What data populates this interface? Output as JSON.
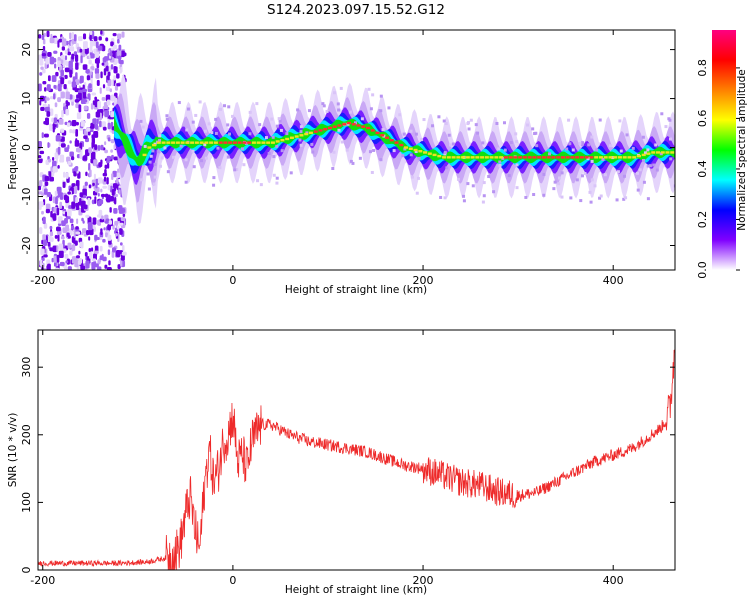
{
  "title": "S124.2023.097.15.52.G12",
  "chart_data": [
    {
      "type": "heatmap",
      "xlabel": "Height of straight line (km)",
      "ylabel": "Frequency (Hz)",
      "xlim": [
        -205,
        465
      ],
      "ylim": [
        -25,
        24
      ],
      "xticks": [
        -200,
        0,
        200,
        400
      ],
      "yticks": [
        -20,
        -10,
        0,
        10,
        20
      ],
      "noise_region_x": [
        -205,
        -120
      ],
      "ridge": {
        "x": [
          -125,
          -110,
          -100,
          -90,
          -80,
          -60,
          -40,
          -20,
          0,
          20,
          40,
          60,
          80,
          100,
          120,
          140,
          160,
          180,
          200,
          220,
          250,
          300,
          350,
          400,
          420,
          440,
          465
        ],
        "y": [
          5,
          0,
          -3,
          0,
          1,
          1,
          1,
          1,
          1,
          1,
          1,
          2,
          3,
          4,
          5,
          4,
          2,
          0,
          -1,
          -2,
          -2,
          -2,
          -2,
          -2,
          -2,
          -1,
          -1
        ]
      },
      "colorbar": {
        "label": "Normalized spectral amplitude",
        "ticks": [
          0.0,
          0.2,
          0.4,
          0.6,
          0.8
        ],
        "range": [
          0,
          0.95
        ],
        "colors": [
          "#ffffff",
          "#8000ff",
          "#0000ff",
          "#00ffff",
          "#00ff00",
          "#ffff00",
          "#ff8000",
          "#ff0000",
          "#ff0080"
        ]
      }
    },
    {
      "type": "line",
      "xlabel": "Height of straight line (km)",
      "ylabel": "SNR (10 * v/v)",
      "xlim": [
        -205,
        465
      ],
      "ylim": [
        0,
        355
      ],
      "xticks": [
        -200,
        0,
        200,
        400
      ],
      "yticks": [
        0,
        100,
        200,
        300
      ],
      "color": "#ee2a2a",
      "series": [
        {
          "x": [
            -205,
            -180,
            -150,
            -120,
            -90,
            -70,
            -60,
            -55,
            -50,
            -45,
            -40,
            -35,
            -30,
            -25,
            -20,
            -15,
            -10,
            -5,
            0,
            5,
            10,
            15,
            20,
            30,
            40,
            60,
            80,
            100,
            120,
            140,
            160,
            180,
            200,
            220,
            240,
            260,
            280,
            300,
            320,
            340,
            360,
            380,
            400,
            420,
            440,
            450,
            455,
            460,
            463,
            465
          ],
          "y": [
            10,
            10,
            10,
            10,
            12,
            18,
            25,
            40,
            80,
            110,
            60,
            30,
            120,
            180,
            130,
            150,
            190,
            200,
            230,
            160,
            170,
            150,
            190,
            215,
            215,
            200,
            190,
            185,
            180,
            175,
            165,
            155,
            150,
            140,
            130,
            125,
            115,
            110,
            115,
            130,
            145,
            160,
            170,
            180,
            200,
            210,
            220,
            240,
            300,
            330
          ]
        }
      ]
    }
  ]
}
